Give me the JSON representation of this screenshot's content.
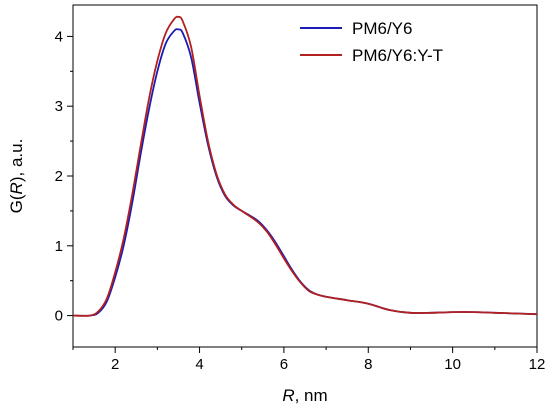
{
  "chart_data": {
    "type": "line",
    "xlabel": {
      "italic": "R",
      "rest": ", nm"
    },
    "ylabel": {
      "prefix": "G(",
      "italic": "R",
      "suffix": "), a.u."
    },
    "xlim": [
      1,
      12
    ],
    "ylim": [
      -0.45,
      4.45
    ],
    "xticks": [
      2,
      4,
      6,
      8,
      10,
      12
    ],
    "yticks": [
      0,
      1,
      2,
      3,
      4
    ],
    "grid": false,
    "legend_position": "top-right",
    "series": [
      {
        "name": "PM6/Y6",
        "color": "#1c1cb4",
        "x": [
          1.0,
          1.4,
          1.6,
          1.8,
          2.0,
          2.2,
          2.4,
          2.6,
          2.8,
          3.0,
          3.2,
          3.4,
          3.5,
          3.6,
          3.8,
          4.0,
          4.2,
          4.4,
          4.6,
          4.8,
          5.0,
          5.2,
          5.4,
          5.6,
          5.8,
          6.0,
          6.2,
          6.4,
          6.6,
          6.8,
          7.0,
          7.5,
          8.0,
          8.5,
          9.0,
          9.5,
          10.0,
          10.5,
          11.0,
          11.5,
          12.0
        ],
        "y": [
          0.0,
          0.0,
          0.04,
          0.2,
          0.55,
          1.0,
          1.6,
          2.3,
          2.95,
          3.5,
          3.9,
          4.08,
          4.1,
          4.05,
          3.7,
          3.05,
          2.45,
          2.0,
          1.72,
          1.58,
          1.5,
          1.43,
          1.35,
          1.22,
          1.05,
          0.85,
          0.65,
          0.48,
          0.36,
          0.3,
          0.27,
          0.22,
          0.17,
          0.08,
          0.04,
          0.04,
          0.05,
          0.05,
          0.04,
          0.03,
          0.02
        ]
      },
      {
        "name": "PM6/Y6:Y-T",
        "color": "#b22020",
        "x": [
          1.0,
          1.4,
          1.6,
          1.8,
          2.0,
          2.2,
          2.4,
          2.6,
          2.8,
          3.0,
          3.2,
          3.4,
          3.5,
          3.6,
          3.8,
          4.0,
          4.2,
          4.4,
          4.6,
          4.8,
          5.0,
          5.2,
          5.4,
          5.6,
          5.8,
          6.0,
          6.2,
          6.4,
          6.6,
          6.8,
          7.0,
          7.5,
          8.0,
          8.5,
          9.0,
          9.5,
          10.0,
          10.5,
          11.0,
          11.5,
          12.0
        ],
        "y": [
          0.0,
          0.0,
          0.06,
          0.24,
          0.62,
          1.1,
          1.72,
          2.42,
          3.1,
          3.65,
          4.05,
          4.25,
          4.28,
          4.22,
          3.85,
          3.15,
          2.5,
          2.03,
          1.74,
          1.59,
          1.5,
          1.42,
          1.33,
          1.2,
          1.02,
          0.82,
          0.63,
          0.47,
          0.35,
          0.3,
          0.27,
          0.22,
          0.17,
          0.08,
          0.04,
          0.04,
          0.05,
          0.05,
          0.04,
          0.03,
          0.02
        ]
      }
    ]
  }
}
